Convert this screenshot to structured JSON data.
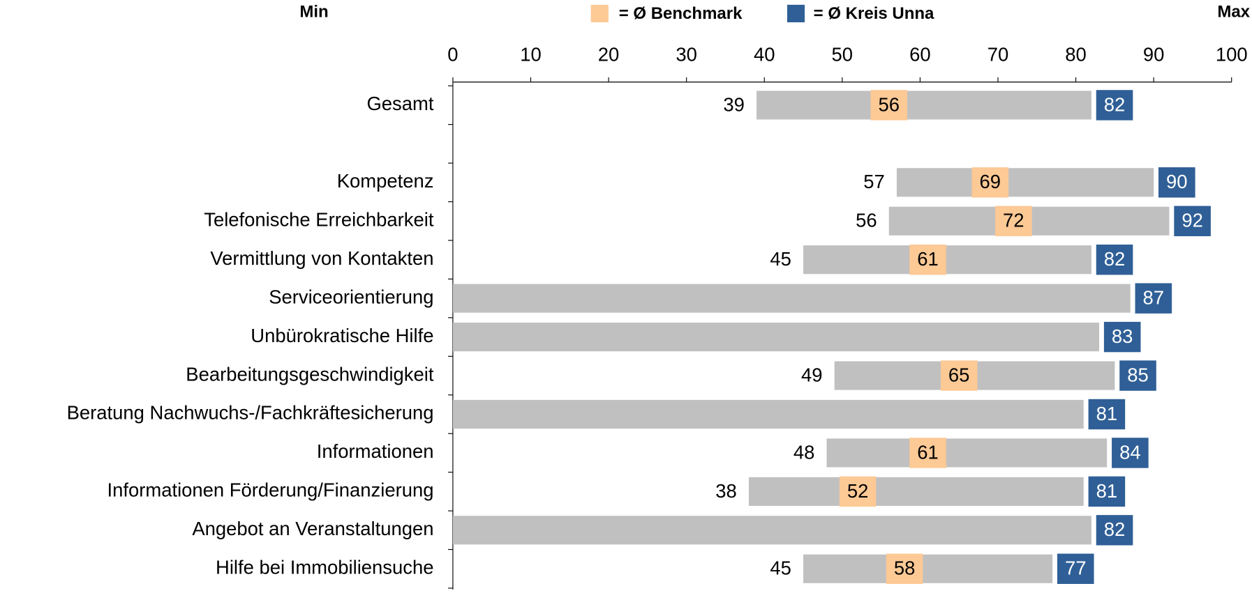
{
  "chart_data": {
    "type": "range-bar",
    "min_label": "Min",
    "max_label": "Max",
    "categories": [
      "Gesamt",
      null,
      "Kompetenz",
      "Telefonische Erreichbarkeit",
      "Vermittlung von Kontakten",
      "Serviceorientierung",
      "Unbürokratische Hilfe",
      "Bearbeitungsgeschwindigkeit",
      "Beratung Nachwuchs-/Fachkräftesicherung",
      "Informationen",
      "Informationen Förderung/Finanzierung",
      "Angebot an Veranstaltungen",
      "Hilfe bei Immobiliensuche"
    ],
    "min_values": [
      39,
      null,
      57,
      56,
      45,
      null,
      null,
      49,
      null,
      48,
      38,
      null,
      45
    ],
    "series": [
      {
        "name": "= Ø Benchmark",
        "color": "#fdc995",
        "values": [
          56,
          null,
          69,
          72,
          61,
          null,
          null,
          65,
          null,
          61,
          52,
          null,
          58
        ]
      },
      {
        "name": "= Ø Kreis Unna",
        "color": "#2f5f96",
        "values": [
          82,
          null,
          90,
          92,
          82,
          87,
          83,
          85,
          81,
          84,
          81,
          82,
          77
        ]
      }
    ],
    "bar_color": "#c0c0c0",
    "xlim": [
      0,
      100
    ],
    "xticks": [
      0,
      10,
      20,
      30,
      40,
      50,
      60,
      70,
      80,
      90,
      100
    ]
  }
}
